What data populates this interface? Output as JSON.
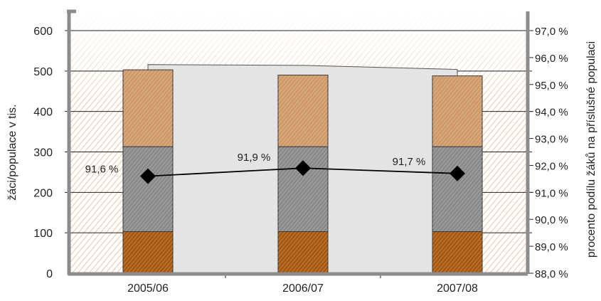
{
  "chart_data": {
    "type": "bar",
    "categories": [
      "2005/06",
      "2006/07",
      "2007/08"
    ],
    "series": [
      {
        "values": [
          103,
          103,
          103
        ],
        "color": "#a8590f"
      },
      {
        "values": [
          210,
          210,
          210
        ],
        "color": "#8a8a8a"
      },
      {
        "values": [
          190,
          177,
          175
        ],
        "color": "#cf9a68"
      }
    ],
    "total_values": [
      503,
      490,
      488
    ],
    "line_series": {
      "values": [
        91.6,
        91.9,
        91.7
      ],
      "labels": [
        "91,6 %",
        "91,9 %",
        "91,7 %"
      ],
      "marker": "diamond",
      "color": "#000000"
    },
    "ylabel": "žáci/populace v tis.",
    "y2label": "procento podílu žáků na příslušné populaci",
    "ylim": [
      0,
      600
    ],
    "y2lim": [
      88.0,
      97.0
    ],
    "yticks": [
      {
        "value": 0,
        "label": "0"
      },
      {
        "value": 100,
        "label": "100"
      },
      {
        "value": 200,
        "label": "200"
      },
      {
        "value": 300,
        "label": "300"
      },
      {
        "value": 400,
        "label": "400"
      },
      {
        "value": 500,
        "label": "500"
      },
      {
        "value": 600,
        "label": "600"
      }
    ],
    "y2ticks": [
      {
        "value": 88.0,
        "label": "88,0 %"
      },
      {
        "value": 89.0,
        "label": "89,0 %"
      },
      {
        "value": 90.0,
        "label": "90,0 %"
      },
      {
        "value": 91.0,
        "label": "91,0 %"
      },
      {
        "value": 92.0,
        "label": "92,0 %"
      },
      {
        "value": 93.0,
        "label": "93,0 %"
      },
      {
        "value": 94.0,
        "label": "94,0 %"
      },
      {
        "value": 95.0,
        "label": "95,0 %"
      },
      {
        "value": 96.0,
        "label": "96,0 %"
      },
      {
        "value": 97.0,
        "label": "97,0 %"
      }
    ],
    "grid": true,
    "legend": "none",
    "background_area": {
      "values": [
        516,
        514,
        504
      ],
      "color": "#e4e4e4"
    }
  }
}
